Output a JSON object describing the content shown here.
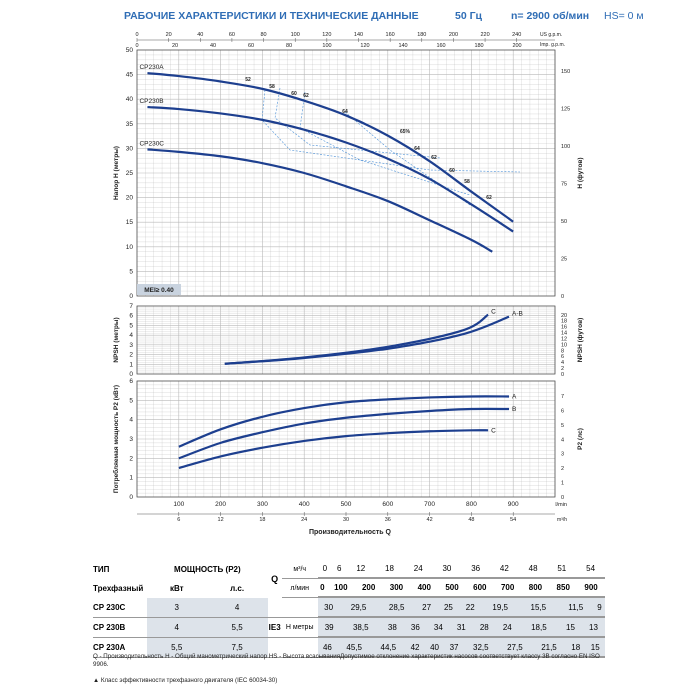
{
  "header": {
    "title": "РАБОЧИЕ ХАРАКТЕРИСТИКИ И ТЕХНИЧЕСКИЕ ДАННЫЕ",
    "freq": "50 Гц",
    "speed": "n= 2900 об/мин",
    "hs": "HS= 0 м"
  },
  "chart_data": [
    {
      "type": "line",
      "xlabel": "Производительность Q",
      "ylabel": "Напор H (метры)",
      "ylabel_right": "H (футов)",
      "x_unit": "l/min",
      "x_unit_m3": "m³/h",
      "x_unit_usgpm": "US g.p.m.",
      "x_unit_impgpm": "Imp. g.p.m.",
      "y_unit_right": "feet",
      "xlim": [
        0,
        1000
      ],
      "ylim": [
        0,
        50
      ],
      "x_ticks": [
        "100",
        "200",
        "300",
        "400",
        "500",
        "600",
        "700",
        "800",
        "900"
      ],
      "x_ticks_m3": [
        "6",
        "12",
        "18",
        "24",
        "30",
        "36",
        "42",
        "48",
        "54"
      ],
      "x_ticks_usgpm": [
        "0",
        "20",
        "40",
        "60",
        "80",
        "100",
        "120",
        "140",
        "160",
        "180",
        "200",
        "220",
        "240"
      ],
      "x_ticks_impgpm": [
        "0",
        "20",
        "40",
        "60",
        "80",
        "100",
        "120",
        "140",
        "160",
        "180",
        "200"
      ],
      "y_ticks": [
        "0",
        "5",
        "10",
        "15",
        "20",
        "25",
        "30",
        "35",
        "40",
        "45",
        "50"
      ],
      "y_ticks_right": [
        "0",
        "25",
        "50",
        "75",
        "100",
        "125",
        "150"
      ],
      "series": [
        {
          "name": "CP230A",
          "x": [
            25,
            100,
            200,
            300,
            400,
            500,
            600,
            700,
            800,
            900
          ],
          "y": [
            45.3,
            44.7,
            43.6,
            42.1,
            39.7,
            36.7,
            32.6,
            27.4,
            21.2,
            15.1
          ]
        },
        {
          "name": "CP230B",
          "x": [
            25,
            100,
            200,
            300,
            400,
            500,
            600,
            700,
            800,
            900
          ],
          "y": [
            38.4,
            38.0,
            37.1,
            35.8,
            33.8,
            31.2,
            27.9,
            23.8,
            18.6,
            13.1
          ]
        },
        {
          "name": "CP230C",
          "x": [
            25,
            100,
            200,
            300,
            400,
            500,
            600,
            700,
            800,
            850
          ],
          "y": [
            29.8,
            29.3,
            28.4,
            27.0,
            25.0,
            22.3,
            19.3,
            15.4,
            11.4,
            9.0
          ]
        }
      ],
      "efficiency_labels": [
        "52",
        "58",
        "60",
        "62",
        "64",
        "65%",
        "64",
        "62",
        "60",
        "58",
        "62"
      ],
      "badge": "MEI≥ 0.40"
    },
    {
      "type": "line",
      "ylabel": "NPSH (метры)",
      "ylabel_right": "NPSH (футов)",
      "xlim": [
        0,
        1000
      ],
      "ylim": [
        0,
        7
      ],
      "y_ticks": [
        "0",
        "1",
        "2",
        "3",
        "4",
        "5",
        "6",
        "7"
      ],
      "y_ticks_right": [
        "0",
        "2",
        "4",
        "6",
        "8",
        "10",
        "12",
        "14",
        "16",
        "18",
        "20"
      ],
      "series": [
        {
          "name": "C",
          "x": [
            210,
            400,
            600,
            780,
            840
          ],
          "y": [
            1.05,
            1.7,
            2.8,
            4.5,
            6.1
          ]
        },
        {
          "name": "A-B",
          "x": [
            210,
            400,
            600,
            780,
            890
          ],
          "y": [
            1.05,
            1.65,
            2.6,
            4.1,
            5.9
          ]
        }
      ]
    },
    {
      "type": "line",
      "ylabel": "Потребляемая мощность P2 (кВт)",
      "ylabel_right": "P2 (лс)",
      "xlim": [
        0,
        1000
      ],
      "ylim": [
        0,
        6
      ],
      "y_ticks": [
        "0",
        "1",
        "2",
        "3",
        "4",
        "5",
        "6"
      ],
      "y_ticks_right": [
        "0",
        "1",
        "2",
        "3",
        "4",
        "5",
        "6",
        "7"
      ],
      "series": [
        {
          "name": "A",
          "x": [
            100,
            200,
            300,
            400,
            500,
            600,
            700,
            800,
            890
          ],
          "y": [
            2.6,
            3.5,
            4.15,
            4.6,
            4.9,
            5.05,
            5.15,
            5.2,
            5.2
          ]
        },
        {
          "name": "B",
          "x": [
            100,
            200,
            300,
            400,
            500,
            600,
            700,
            800,
            890
          ],
          "y": [
            2.0,
            2.8,
            3.35,
            3.8,
            4.1,
            4.3,
            4.45,
            4.55,
            4.55
          ]
        },
        {
          "name": "C",
          "x": [
            100,
            200,
            300,
            400,
            500,
            600,
            700,
            800,
            840
          ],
          "y": [
            1.5,
            2.1,
            2.55,
            2.9,
            3.15,
            3.3,
            3.4,
            3.45,
            3.45
          ]
        }
      ]
    }
  ],
  "table": {
    "col_type": "ТИП",
    "col_power": "МОЩНОСТЬ (P2)",
    "col_q": "Q",
    "unit_m3": "м³/ч",
    "unit_lmin": "л/мин",
    "q_m3": [
      "0",
      "6",
      "12",
      "18",
      "24",
      "30",
      "36",
      "42",
      "48",
      "51",
      "54"
    ],
    "q_lmin": [
      "0",
      "100",
      "200",
      "300",
      "400",
      "500",
      "600",
      "700",
      "800",
      "850",
      "900"
    ],
    "sub_type": "Трехфазный",
    "sub_kw": "кВт",
    "sub_hp": "л.с.",
    "ie": "IE3",
    "h_label": "H",
    "h_unit": "метры",
    "rows": [
      {
        "model": "CP 230C",
        "kw": "3",
        "hp": "4",
        "h": [
          "30",
          "29,5",
          "28,5",
          "27",
          "25",
          "22",
          "19,5",
          "15,5",
          "11,5",
          "9",
          ""
        ]
      },
      {
        "model": "CP 230B",
        "kw": "4",
        "hp": "5,5",
        "h": [
          "39",
          "38,5",
          "38",
          "36",
          "34",
          "31",
          "28",
          "24",
          "18,5",
          "15",
          "13"
        ]
      },
      {
        "model": "CP 230A",
        "kw": "5,5",
        "hp": "7,5",
        "h": [
          "46",
          "45,5",
          "44,5",
          "42",
          "40",
          "37",
          "32,5",
          "27,5",
          "21,5",
          "18",
          "15"
        ]
      }
    ]
  },
  "notes": "Q - Производительность   H - Общий манометрический напор   HS - Высота всасыванияДопустимое отклонение характеристик насосов соответствует классу 3В согласно EN ISO 9906.",
  "footnote": "▲  Класс эффективности трехфазного двигателя (IEC 60034-30)",
  "colors": {
    "accent": "#2f6db5",
    "curve": "#1d3f8f",
    "dashed": "#4a8fd6",
    "grid": "#b9b9b9"
  }
}
